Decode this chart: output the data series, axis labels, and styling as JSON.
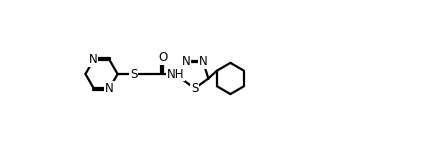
{
  "background_color": "#ffffff",
  "line_color": "#000000",
  "line_width": 1.6,
  "font_size": 8.5,
  "figsize": [
    4.34,
    1.42
  ],
  "dpi": 100,
  "xlim": [
    0,
    4.34
  ],
  "ylim": [
    0,
    1.42
  ]
}
